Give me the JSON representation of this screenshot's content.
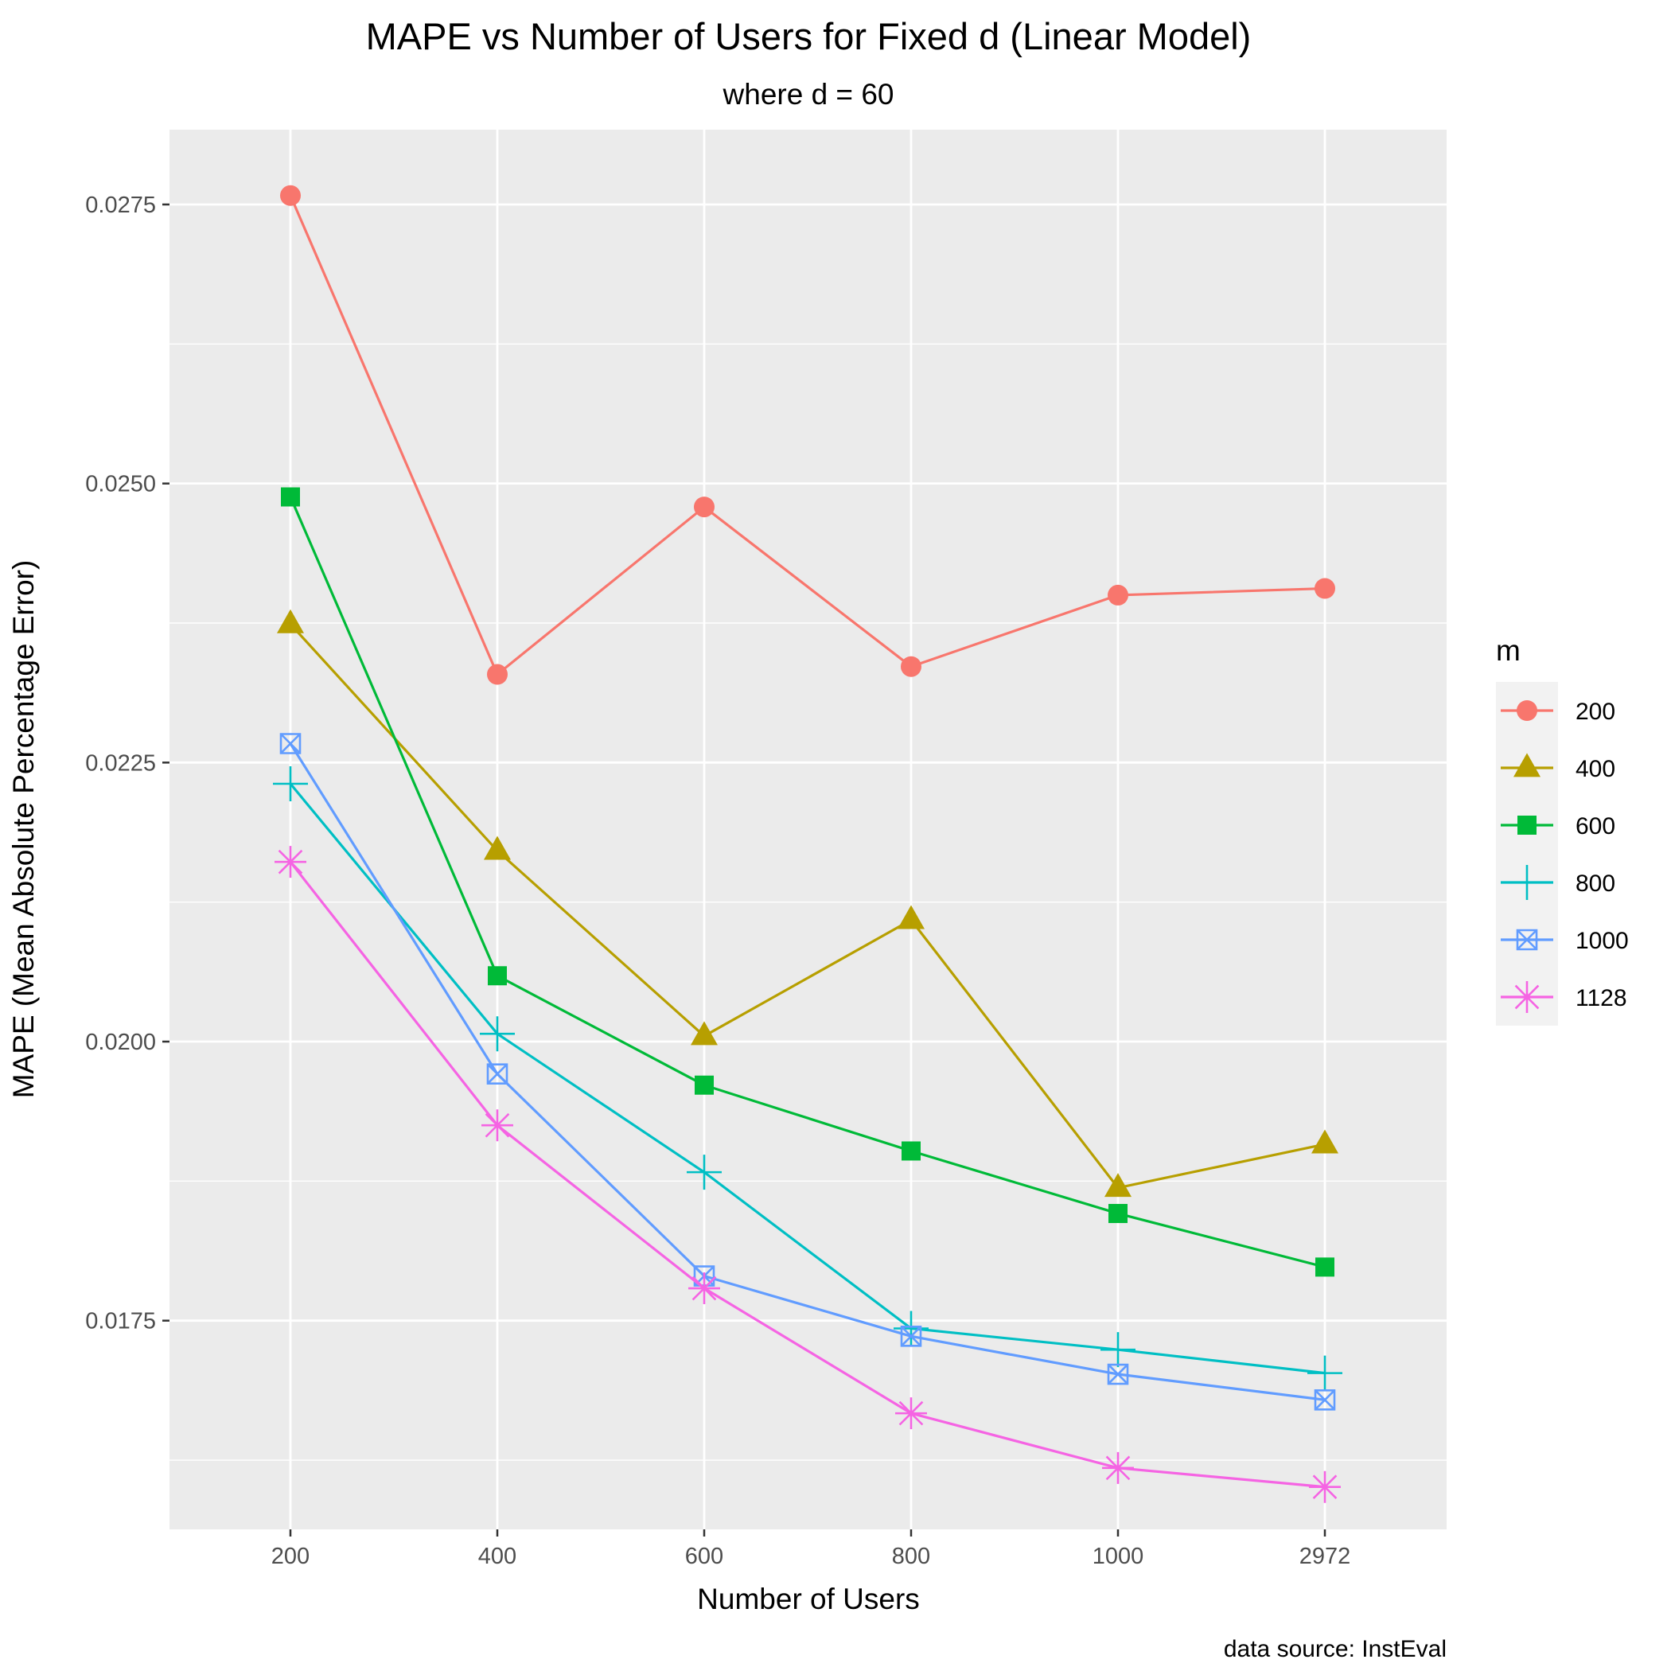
{
  "chart_data": {
    "type": "line",
    "title": "MAPE vs Number of Users for Fixed d (Linear Model)",
    "subtitle": "where d = 60",
    "xlabel": "Number of Users",
    "ylabel": "MAPE (Mean Absolute Percentage Error)",
    "caption": "data source: InstEval",
    "categories": [
      "200",
      "400",
      "600",
      "800",
      "1000",
      "2972"
    ],
    "ylim": [
      0.01563,
      0.02817
    ],
    "yticks": [
      0.0175,
      0.02,
      0.0225,
      0.025,
      0.0275
    ],
    "ytick_labels": [
      "0.0175",
      "0.0200",
      "0.0225",
      "0.0250",
      "0.0275"
    ],
    "legend": {
      "title": "m",
      "position": "right"
    },
    "grid": true,
    "series": [
      {
        "name": "200",
        "shape": "circle",
        "color": "#F8766D",
        "values": [
          0.02758,
          0.02329,
          0.02479,
          0.02336,
          0.024,
          0.02406
        ]
      },
      {
        "name": "400",
        "shape": "triangle",
        "color": "#B79F00",
        "values": [
          0.02374,
          0.02171,
          0.02005,
          0.02109,
          0.01869,
          0.01908
        ]
      },
      {
        "name": "600",
        "shape": "square",
        "color": "#00BA38",
        "values": [
          0.02488,
          0.02059,
          0.01961,
          0.01902,
          0.01846,
          0.01798
        ]
      },
      {
        "name": "800",
        "shape": "plus",
        "color": "#00BFC4",
        "values": [
          0.02231,
          0.02007,
          0.01883,
          0.01743,
          0.01724,
          0.01703
        ]
      },
      {
        "name": "1000",
        "shape": "boxcross",
        "color": "#619CFF",
        "values": [
          0.02267,
          0.01971,
          0.0179,
          0.01736,
          0.01702,
          0.01679
        ]
      },
      {
        "name": "1128",
        "shape": "asterisk",
        "color": "#F564E3",
        "values": [
          0.02161,
          0.01925,
          0.01779,
          0.01667,
          0.01618,
          0.01601
        ]
      }
    ]
  }
}
